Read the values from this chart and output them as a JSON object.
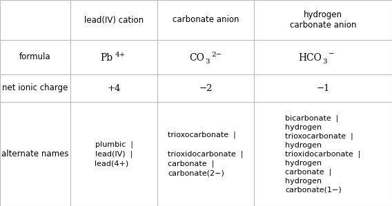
{
  "col_headers": [
    "",
    "lead(IV) cation",
    "carbonate anion",
    "hydrogen\ncarbonate anion"
  ],
  "row_labels": [
    "formula",
    "net ionic charge",
    "alternate names"
  ],
  "charge_row": [
    "+4",
    "−2",
    "−1"
  ],
  "alt_names_1": "plumbic  |\nlead(IV)  |\nlead(4+)",
  "alt_names_2": "trioxocarbonate  |\n\ntrioxidocarbonate  |\ncarbonate  |\ncarbonate(2−)",
  "alt_names_3": "bicarbonate  |\nhydrogen\ntrioxocarbonate  |\nhydrogen\ntrioxidocarbonate  |\nhydrogen\ncarbonate  |\nhydrogen\ncarbonate(1−)",
  "bg_color": "#ffffff",
  "line_color": "#bbbbbb",
  "text_color": "#000000",
  "font_size": 8.5
}
